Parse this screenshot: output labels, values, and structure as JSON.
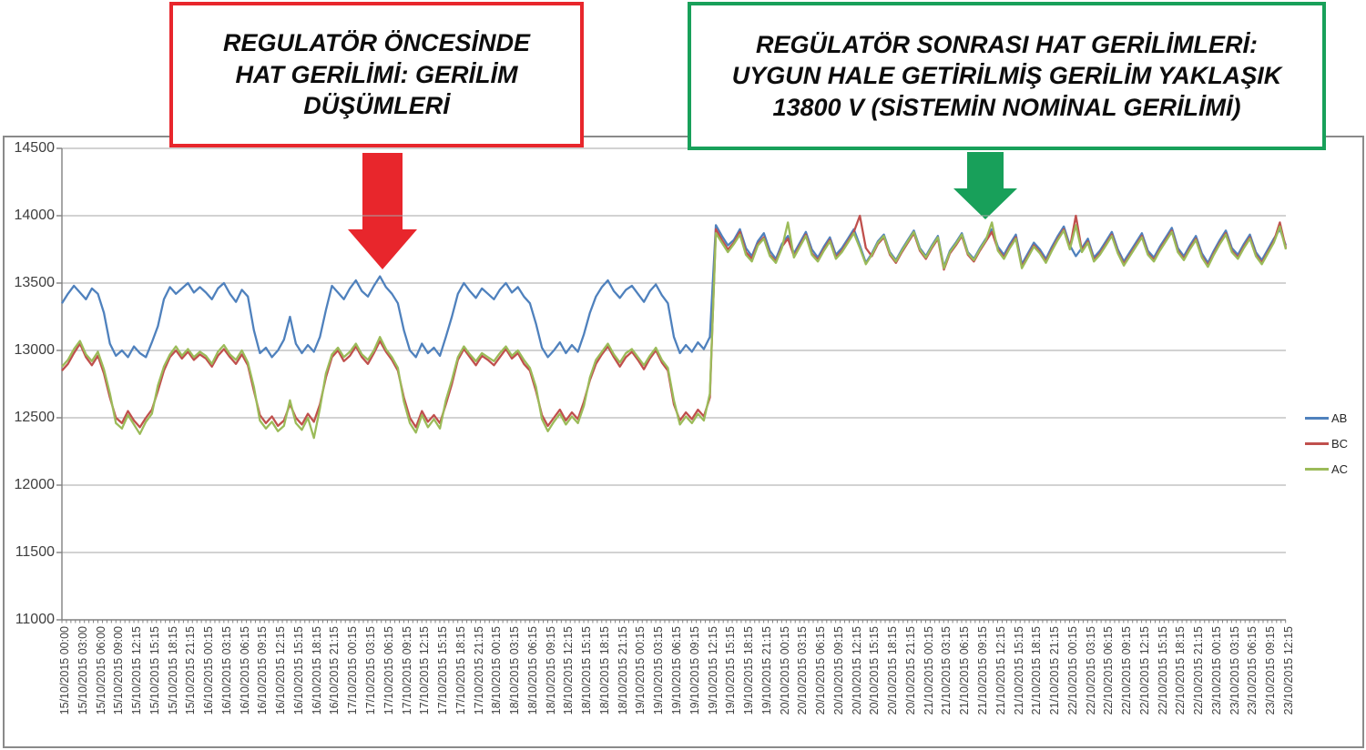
{
  "annotations": {
    "before_box": {
      "text": "REGULATÖR ÖNCESİNDE\nHAT GERİLİMİ: GERİLİM\nDÜŞÜMLERİ",
      "border_color": "#e8262c"
    },
    "after_box": {
      "text": "REGÜLATÖR SONRASI HAT GERİLİMLERİ:\nUYGUN HALE GETİRİLMİŞ GERİLİM YAKLAŞIK\n13800 V (SİSTEMİN NOMİNAL GERİLİMİ)",
      "border_color": "#18a05a"
    },
    "red_arrow_color": "#e8262c",
    "green_arrow_color": "#18a05a"
  },
  "chart_data": {
    "type": "line",
    "title": "",
    "xlabel": "",
    "ylabel": "",
    "ylim": [
      11000,
      14500
    ],
    "grid": "horizontal",
    "gridline_color": "#a6a6a6",
    "axis_color": "#808080",
    "y_ticks": [
      14500,
      14000,
      13500,
      13000,
      12500,
      12000,
      11500,
      11000
    ],
    "points_per_tick": 3,
    "x_tick_labels": [
      "15/10/2015 00:00",
      "15/10/2015 03:00",
      "15/10/2015 06:00",
      "15/10/2015 09:00",
      "15/10/2015 12:15",
      "15/10/2015 15:15",
      "15/10/2015 18:15",
      "15/10/2015 21:15",
      "16/10/2015 00:15",
      "16/10/2015 03:15",
      "16/10/2015 06:15",
      "16/10/2015 09:15",
      "16/10/2015 12:15",
      "16/10/2015 15:15",
      "16/10/2015 18:15",
      "16/10/2015 21:15",
      "17/10/2015 00:15",
      "17/10/2015 03:15",
      "17/10/2015 06:15",
      "17/10/2015 09:15",
      "17/10/2015 12:15",
      "17/10/2015 15:15",
      "17/10/2015 18:15",
      "17/10/2015 21:15",
      "18/10/2015 00:15",
      "18/10/2015 03:15",
      "18/10/2015 06:15",
      "18/10/2015 09:15",
      "18/10/2015 12:15",
      "18/10/2015 15:15",
      "18/10/2015 18:15",
      "18/10/2015 21:15",
      "19/10/2015 00:15",
      "19/10/2015 03:15",
      "19/10/2015 06:15",
      "19/10/2015 09:15",
      "19/10/2015 12:15",
      "19/10/2015 15:15",
      "19/10/2015 18:15",
      "19/10/2015 21:15",
      "20/10/2015 00:15",
      "20/10/2015 03:15",
      "20/10/2015 06:15",
      "20/10/2015 09:15",
      "20/10/2015 12:15",
      "20/10/2015 15:15",
      "20/10/2015 18:15",
      "20/10/2015 21:15",
      "21/10/2015 00:15",
      "21/10/2015 03:15",
      "21/10/2015 06:15",
      "21/10/2015 09:15",
      "21/10/2015 12:15",
      "21/10/2015 15:15",
      "21/10/2015 18:15",
      "21/10/2015 21:15",
      "22/10/2015 00:15",
      "22/10/2015 03:15",
      "22/10/2015 06:15",
      "22/10/2015 09:15",
      "22/10/2015 12:15",
      "22/10/2015 15:15",
      "22/10/2015 18:15",
      "22/10/2015 21:15",
      "23/10/2015 00:15",
      "23/10/2015 03:15",
      "23/10/2015 06:15",
      "23/10/2015 09:15",
      "23/10/2015 12:15"
    ],
    "legend": {
      "position": "right",
      "entries": [
        {
          "name": "AB",
          "color": "#4f81bd"
        },
        {
          "name": "BC",
          "color": "#c0504d"
        },
        {
          "name": "AC",
          "color": "#9bbb59"
        }
      ]
    },
    "series": [
      {
        "name": "AB",
        "color": "#4f81bd",
        "values": [
          13350,
          13420,
          13480,
          13430,
          13380,
          13460,
          13420,
          13280,
          13050,
          12960,
          13000,
          12950,
          13030,
          12980,
          12950,
          13060,
          13180,
          13380,
          13470,
          13420,
          13460,
          13500,
          13430,
          13470,
          13430,
          13380,
          13460,
          13500,
          13420,
          13360,
          13450,
          13400,
          13150,
          12980,
          13020,
          12950,
          13000,
          13080,
          13250,
          13050,
          12980,
          13040,
          12990,
          13100,
          13300,
          13480,
          13430,
          13380,
          13460,
          13520,
          13440,
          13400,
          13480,
          13550,
          13470,
          13420,
          13350,
          13150,
          13000,
          12950,
          13050,
          12980,
          13020,
          12960,
          13100,
          13250,
          13420,
          13500,
          13440,
          13390,
          13460,
          13420,
          13380,
          13450,
          13500,
          13430,
          13470,
          13400,
          13350,
          13200,
          13020,
          12950,
          13000,
          13060,
          12980,
          13040,
          12990,
          13120,
          13280,
          13400,
          13470,
          13520,
          13440,
          13390,
          13450,
          13480,
          13420,
          13360,
          13440,
          13490,
          13410,
          13350,
          13100,
          12980,
          13040,
          12990,
          13060,
          13010,
          13100,
          13930,
          13850,
          13780,
          13820,
          13900,
          13760,
          13700,
          13810,
          13870,
          13740,
          13680,
          13790,
          13850,
          13720,
          13800,
          13880,
          13750,
          13690,
          13770,
          13840,
          13710,
          13760,
          13830,
          13900,
          13780,
          13650,
          13720,
          13810,
          13860,
          13730,
          13670,
          13750,
          13820,
          13890,
          13760,
          13700,
          13780,
          13850,
          13620,
          13740,
          13800,
          13870,
          13730,
          13680,
          13760,
          13830,
          13900,
          13770,
          13710,
          13790,
          13860,
          13640,
          13720,
          13800,
          13750,
          13680,
          13770,
          13850,
          13920,
          13780,
          13700,
          13760,
          13830,
          13690,
          13740,
          13810,
          13880,
          13750,
          13660,
          13730,
          13800,
          13870,
          13740,
          13690,
          13770,
          13840,
          13910,
          13760,
          13700,
          13780,
          13850,
          13720,
          13650,
          13740,
          13820,
          13890,
          13760,
          13710,
          13790,
          13860,
          13730,
          13670,
          13750,
          13830,
          13900,
          13780
        ]
      },
      {
        "name": "BC",
        "color": "#c0504d",
        "values": [
          12850,
          12900,
          12980,
          13050,
          12950,
          12890,
          12960,
          12830,
          12650,
          12500,
          12460,
          12550,
          12480,
          12430,
          12500,
          12560,
          12700,
          12850,
          12950,
          13000,
          12940,
          12990,
          12930,
          12970,
          12940,
          12880,
          12960,
          13010,
          12950,
          12900,
          12970,
          12890,
          12700,
          12520,
          12460,
          12510,
          12440,
          12480,
          12600,
          12500,
          12450,
          12530,
          12470,
          12600,
          12800,
          12950,
          13000,
          12920,
          12960,
          13030,
          12950,
          12900,
          12980,
          13070,
          12990,
          12930,
          12850,
          12650,
          12500,
          12430,
          12550,
          12470,
          12520,
          12460,
          12600,
          12750,
          12930,
          13010,
          12950,
          12890,
          12960,
          12930,
          12890,
          12950,
          13010,
          12940,
          12980,
          12900,
          12850,
          12700,
          12520,
          12440,
          12500,
          12560,
          12480,
          12540,
          12490,
          12620,
          12780,
          12900,
          12970,
          13030,
          12950,
          12880,
          12950,
          12990,
          12930,
          12860,
          12940,
          13000,
          12910,
          12850,
          12600,
          12480,
          12540,
          12490,
          12560,
          12510,
          12650,
          13900,
          13820,
          13750,
          13800,
          13880,
          13730,
          13680,
          13790,
          13840,
          13710,
          13660,
          13770,
          13830,
          13700,
          13780,
          13860,
          13720,
          13670,
          13750,
          13820,
          13690,
          13740,
          13810,
          13880,
          14000,
          13760,
          13700,
          13790,
          13840,
          13710,
          13650,
          13730,
          13800,
          13870,
          13740,
          13680,
          13760,
          13830,
          13600,
          13720,
          13780,
          13850,
          13710,
          13660,
          13740,
          13810,
          13880,
          13750,
          13690,
          13770,
          13840,
          13620,
          13700,
          13780,
          13730,
          13660,
          13750,
          13830,
          13900,
          13760,
          14000,
          13740,
          13810,
          13670,
          13720,
          13790,
          13860,
          13730,
          13640,
          13710,
          13780,
          13850,
          13720,
          13670,
          13750,
          13820,
          13890,
          13740,
          13680,
          13760,
          13830,
          13700,
          13630,
          13720,
          13800,
          13870,
          13740,
          13690,
          13770,
          13840,
          13710,
          13650,
          13730,
          13810,
          13950,
          13760
        ]
      },
      {
        "name": "AC",
        "color": "#9bbb59",
        "values": [
          12880,
          12930,
          13010,
          13070,
          12970,
          12920,
          12990,
          12860,
          12680,
          12460,
          12420,
          12520,
          12450,
          12380,
          12470,
          12530,
          12740,
          12880,
          12970,
          13030,
          12960,
          13010,
          12950,
          12990,
          12960,
          12900,
          12990,
          13040,
          12970,
          12930,
          13000,
          12910,
          12730,
          12480,
          12420,
          12470,
          12400,
          12440,
          12630,
          12460,
          12410,
          12500,
          12350,
          12570,
          12830,
          12970,
          13020,
          12950,
          12990,
          13050,
          12970,
          12930,
          13000,
          13100,
          13010,
          12950,
          12870,
          12620,
          12460,
          12390,
          12520,
          12430,
          12490,
          12420,
          12630,
          12780,
          12950,
          13030,
          12970,
          12920,
          12980,
          12950,
          12920,
          12980,
          13030,
          12960,
          13000,
          12930,
          12870,
          12730,
          12490,
          12400,
          12470,
          12530,
          12450,
          12510,
          12460,
          12590,
          12800,
          12930,
          12990,
          13050,
          12970,
          12910,
          12980,
          13010,
          12950,
          12890,
          12960,
          13020,
          12930,
          12870,
          12630,
          12450,
          12510,
          12460,
          12530,
          12480,
          12680,
          13870,
          13800,
          13730,
          13790,
          13860,
          13710,
          13660,
          13780,
          13830,
          13700,
          13650,
          13760,
          13950,
          13690,
          13770,
          13850,
          13710,
          13660,
          13740,
          13810,
          13680,
          13730,
          13800,
          13870,
          13760,
          13640,
          13710,
          13800,
          13850,
          13720,
          13660,
          13740,
          13810,
          13880,
          13750,
          13690,
          13770,
          13840,
          13610,
          13730,
          13790,
          13860,
          13720,
          13670,
          13750,
          13820,
          13950,
          13740,
          13680,
          13760,
          13830,
          13610,
          13690,
          13770,
          13720,
          13650,
          13740,
          13820,
          13890,
          13750,
          13930,
          13730,
          13800,
          13660,
          13710,
          13780,
          13850,
          13720,
          13630,
          13700,
          13770,
          13840,
          13710,
          13660,
          13740,
          13810,
          13880,
          13730,
          13670,
          13750,
          13820,
          13690,
          13620,
          13710,
          13790,
          13860,
          13730,
          13680,
          13760,
          13830,
          13700,
          13640,
          13720,
          13800,
          13920,
          13750
        ]
      }
    ]
  }
}
